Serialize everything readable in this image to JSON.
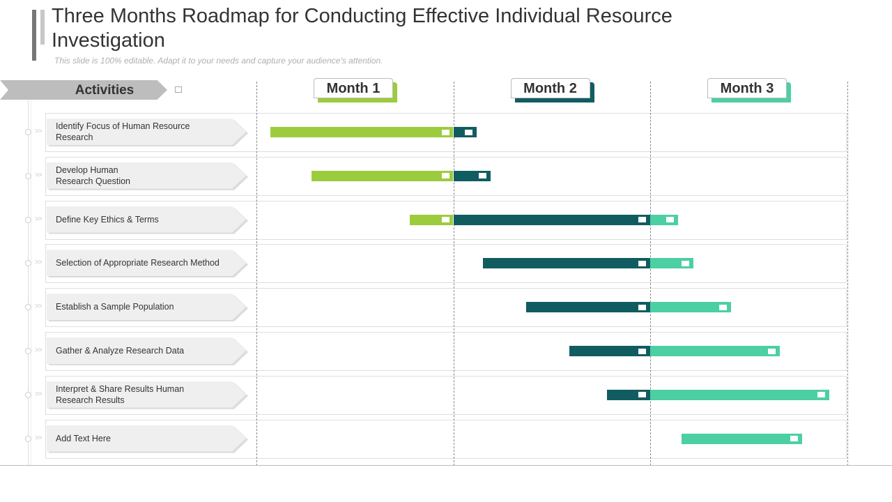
{
  "header": {
    "title": "Three Months Roadmap for Conducting Effective Individual Resource Investigation",
    "subtitle": "This slide is 100% editable. Adapt it to your needs and capture your audience's attention."
  },
  "activities_label": "Activities",
  "months": [
    {
      "label": "Month 1",
      "color": "#9ccc3d"
    },
    {
      "label": "Month 2",
      "color": "#115c61"
    },
    {
      "label": "Month 3",
      "color": "#4ccfa2"
    }
  ],
  "colors": {
    "month1": "#9ccc3d",
    "month2": "#115c61",
    "month3": "#4ccfa2"
  },
  "activities": [
    {
      "label": "Identify Focus of Human Resource\nResearch",
      "start": 0.07,
      "end": 1.12
    },
    {
      "label": "Develop  Human\nResearch Question",
      "start": 0.28,
      "end": 1.19
    },
    {
      "label": "Define  Key Ethics & Terms",
      "start": 0.78,
      "end": 2.14
    },
    {
      "label": "Selection of Appropriate  Research Method",
      "start": 1.15,
      "end": 2.22
    },
    {
      "label": "Establish a Sample Population",
      "start": 1.37,
      "end": 2.41
    },
    {
      "label": "Gather  & Analyze Research  Data",
      "start": 1.59,
      "end": 2.66
    },
    {
      "label": "Interpret  & Share Results Human\nResearch Results",
      "start": 1.78,
      "end": 2.91
    },
    {
      "label": "Add Text Here",
      "start": 2.16,
      "end": 2.77
    }
  ]
}
